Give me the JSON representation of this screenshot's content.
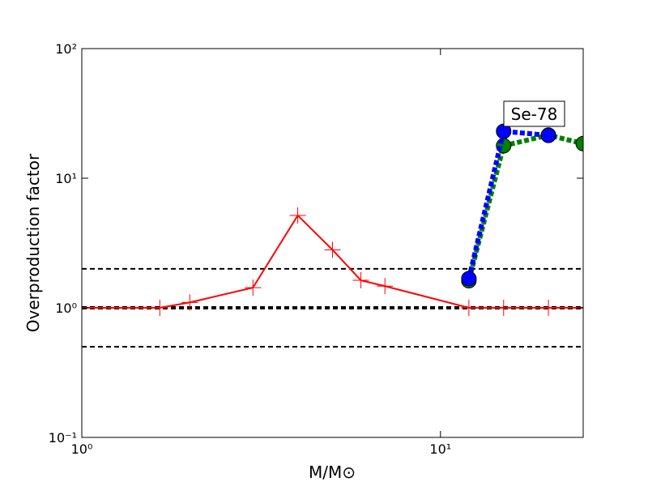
{
  "chart_data": {
    "type": "line",
    "xlabel": "M/M⊙",
    "ylabel": "Overproduction factor",
    "annotation": "Se-78",
    "xscale": "log",
    "yscale": "log",
    "xlim": [
      1,
      25
    ],
    "ylim": [
      0.1,
      100
    ],
    "xticks": [
      {
        "value": 1,
        "label": "10⁰"
      },
      {
        "value": 10,
        "label": "10¹"
      }
    ],
    "yticks": [
      {
        "value": 0.1,
        "label": "10⁻¹"
      },
      {
        "value": 1,
        "label": "10⁰"
      },
      {
        "value": 10,
        "label": "10¹"
      },
      {
        "value": 100,
        "label": "10²"
      }
    ],
    "reference_lines": [
      2,
      1,
      0.5
    ],
    "reference_color": "#000000",
    "series": [
      {
        "color": "#ff0000",
        "linestyle": "solid",
        "marker": "plus",
        "x": [
          1,
          1.65,
          2,
          3,
          4,
          5,
          6,
          7,
          12,
          15,
          20,
          25
        ],
        "values": [
          1.0,
          1.0,
          1.1,
          1.43,
          5.16,
          2.8,
          1.63,
          1.47,
          1.0,
          1.0,
          1.0,
          1.0
        ]
      },
      {
        "color": "#008000",
        "linestyle": "dotted",
        "marker": "circle",
        "x": [
          12,
          15,
          20,
          25
        ],
        "values": [
          1.62,
          17.8,
          21.5,
          18.5
        ]
      },
      {
        "color": "#0000ff",
        "linestyle": "dotted",
        "marker": "circle",
        "x": [
          12,
          15,
          20
        ],
        "values": [
          1.68,
          23,
          21.4
        ]
      }
    ]
  }
}
